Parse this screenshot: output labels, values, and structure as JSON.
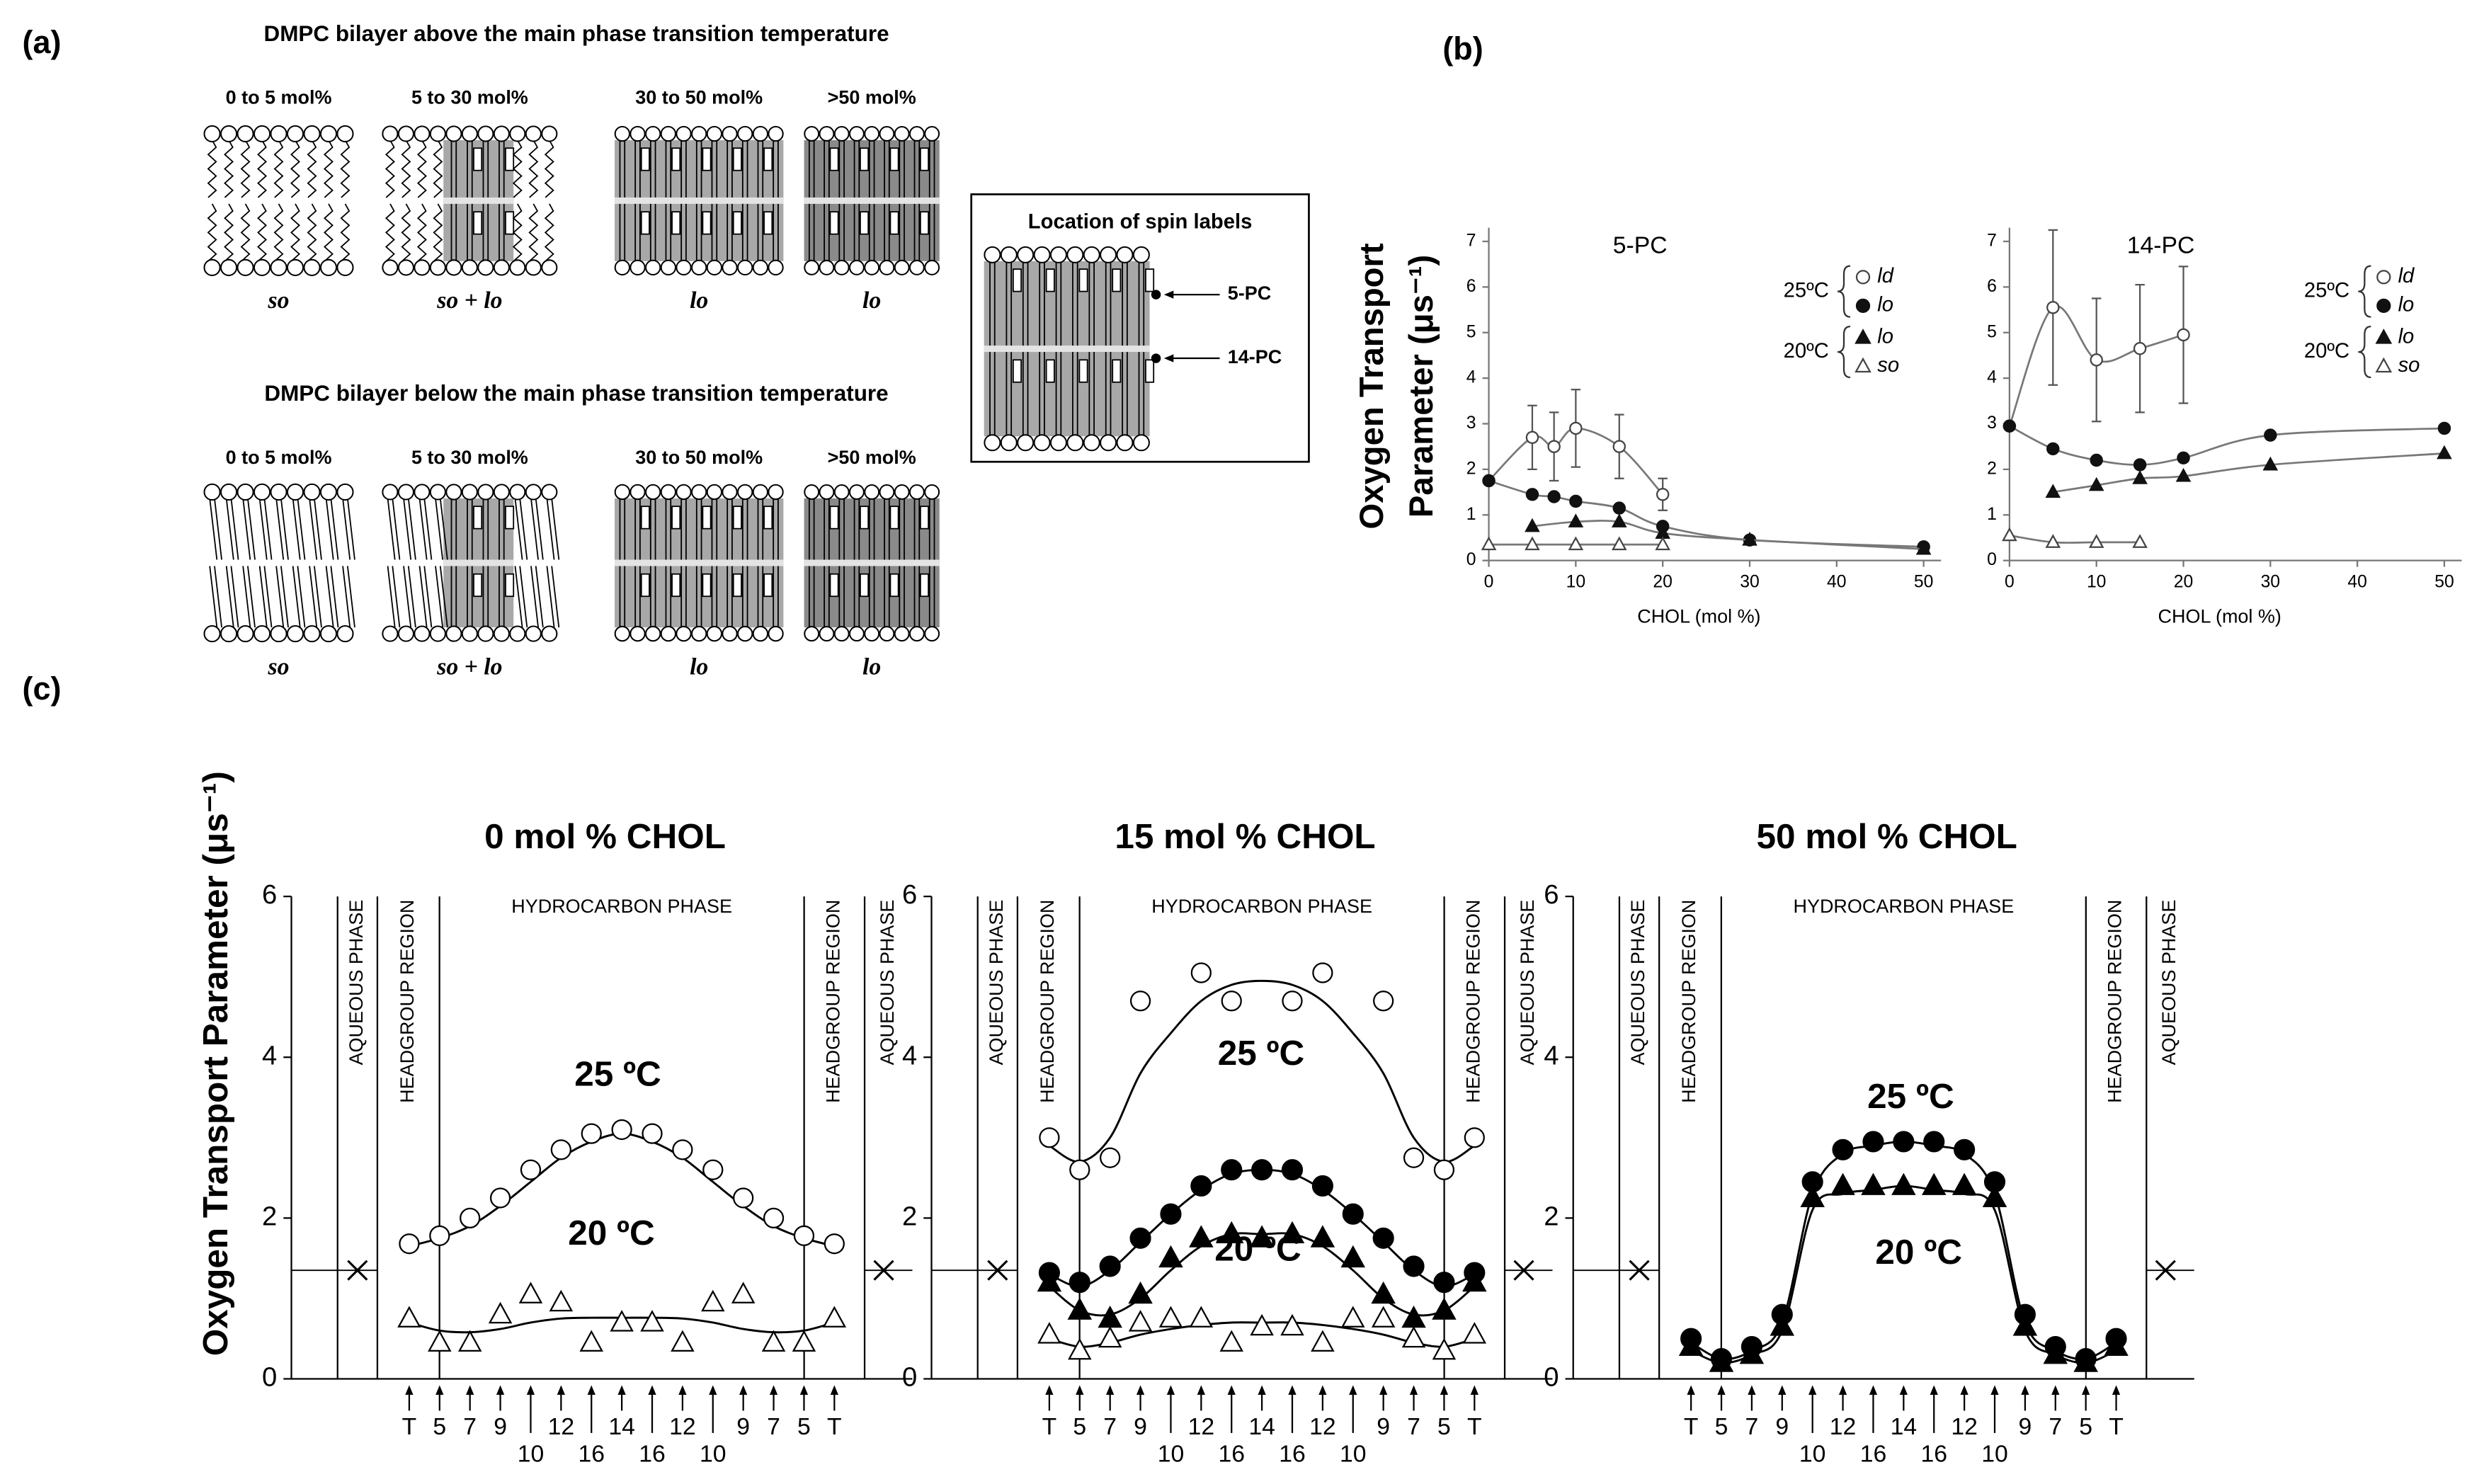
{
  "panel_labels": [
    "(a)",
    "(b)",
    "(c)"
  ],
  "diagram": {
    "above": {
      "title": "DMPC bilayer above the main phase transition temperature",
      "columns": [
        {
          "header": "0 to 5 mol%",
          "phase": "so"
        },
        {
          "header": "5 to 30 mol%",
          "phase": "so + lo"
        },
        {
          "header": "30 to 50 mol%",
          "phase": "lo"
        },
        {
          "header": ">50 mol%",
          "phase": "lo"
        }
      ]
    },
    "below": {
      "title": "DMPC bilayer below the main phase transition temperature",
      "columns": [
        {
          "header": "0 to 5 mol%",
          "phase": "so"
        },
        {
          "header": "5 to 30 mol%",
          "phase": "so + lo"
        },
        {
          "header": "30 to 50 mol%",
          "phase": "lo"
        },
        {
          "header": ">50 mol%",
          "phase": "lo"
        }
      ]
    },
    "spin_labels": {
      "title": "Location of spin labels",
      "labels": [
        "5-PC",
        "14-PC"
      ]
    }
  },
  "chart_data": [
    {
      "type": "scatter",
      "title": "5-PC",
      "xlabel": "CHOL (mol %)",
      "ylabel": [
        "Oxygen Transport",
        "Parameter (μs⁻¹)"
      ],
      "xlim": [
        0,
        52
      ],
      "xticks": [
        0,
        10,
        20,
        30,
        40,
        50
      ],
      "ylim": [
        0,
        7.3
      ],
      "yticks": [
        0,
        1,
        2,
        3,
        4,
        5,
        6,
        7
      ],
      "legend_groups": [
        "25ºC",
        "20ºC"
      ],
      "series": [
        {
          "name": "ld",
          "marker": "open-circle",
          "color": "#444444",
          "x": [
            0,
            5,
            7.5,
            10,
            15,
            20
          ],
          "values": [
            1.75,
            2.7,
            2.5,
            2.9,
            2.5,
            1.45
          ],
          "errors": [
            0,
            0.7,
            0.75,
            0.85,
            0.7,
            0.35
          ]
        },
        {
          "name": "lo",
          "marker": "filled-circle",
          "color": "#111111",
          "x": [
            0,
            5,
            7.5,
            10,
            15,
            20,
            30,
            50
          ],
          "values": [
            1.75,
            1.45,
            1.4,
            1.3,
            1.15,
            0.75,
            0.45,
            0.3
          ]
        },
        {
          "name": "lo",
          "marker": "filled-triangle",
          "color": "#111111",
          "x": [
            5,
            10,
            15,
            20,
            30,
            50
          ],
          "values": [
            0.75,
            0.85,
            0.85,
            0.6,
            0.45,
            0.25
          ]
        },
        {
          "name": "so",
          "marker": "open-triangle",
          "color": "#444444",
          "x": [
            0,
            5,
            10,
            15,
            20
          ],
          "values": [
            0.35,
            0.35,
            0.35,
            0.35,
            0.35
          ]
        }
      ]
    },
    {
      "type": "scatter",
      "title": "14-PC",
      "xlabel": "CHOL (mol %)",
      "xlim": [
        0,
        52
      ],
      "xticks": [
        0,
        10,
        20,
        30,
        40,
        50
      ],
      "ylim": [
        0,
        7.3
      ],
      "yticks": [
        0,
        1,
        2,
        3,
        4,
        5,
        6,
        7
      ],
      "legend_groups": [
        "25ºC",
        "20ºC"
      ],
      "series": [
        {
          "name": "ld",
          "marker": "open-circle",
          "color": "#444444",
          "x": [
            0,
            5,
            10,
            15,
            20
          ],
          "values": [
            2.95,
            5.55,
            4.4,
            4.65,
            4.95
          ],
          "errors": [
            0,
            1.7,
            1.35,
            1.4,
            1.5
          ]
        },
        {
          "name": "lo",
          "marker": "filled-circle",
          "color": "#111111",
          "x": [
            0,
            5,
            10,
            15,
            20,
            30,
            50
          ],
          "values": [
            2.95,
            2.45,
            2.2,
            2.1,
            2.25,
            2.75,
            2.9
          ]
        },
        {
          "name": "lo",
          "marker": "filled-triangle",
          "color": "#111111",
          "x": [
            5,
            10,
            15,
            20,
            30,
            50
          ],
          "values": [
            1.5,
            1.65,
            1.8,
            1.85,
            2.1,
            2.35
          ]
        },
        {
          "name": "so",
          "marker": "open-triangle",
          "color": "#444444",
          "x": [
            0,
            5,
            10,
            15
          ],
          "values": [
            0.55,
            0.4,
            0.4,
            0.4
          ]
        }
      ]
    },
    {
      "type": "profile",
      "title": "0 mol % CHOL",
      "ylabel": "Oxygen Transport Parameter (μs⁻¹)",
      "categories": [
        "T",
        "5",
        "7",
        "9",
        "10",
        "12",
        "16",
        "14",
        "16",
        "12",
        "10",
        "9",
        "7",
        "5",
        "T"
      ],
      "ylim": [
        0,
        6
      ],
      "yticks": [
        0,
        2,
        4,
        6
      ],
      "regions": [
        "AQUEOUS PHASE",
        "HEADGROUP REGION",
        "HYDROCARBON PHASE",
        "HEADGROUP REGION",
        "AQUEOUS PHASE"
      ],
      "aqueous": 1.35,
      "annotations": [
        "25 ºC",
        "20 ºC"
      ],
      "series": [
        {
          "marker": "open-circle",
          "color": "#000000",
          "values": [
            1.68,
            1.78,
            2.0,
            2.25,
            2.6,
            2.85,
            3.05,
            3.1,
            3.05,
            2.85,
            2.6,
            2.25,
            2.0,
            1.78,
            1.68
          ],
          "fit": [
            1.65,
            1.75,
            1.9,
            2.15,
            2.45,
            2.75,
            2.95,
            3.05,
            2.95,
            2.75,
            2.45,
            2.15,
            1.9,
            1.75,
            1.65
          ]
        },
        {
          "marker": "open-triangle",
          "color": "#000000",
          "values": [
            0.75,
            0.45,
            0.45,
            0.8,
            1.05,
            0.95,
            0.45,
            0.7,
            0.7,
            0.45,
            0.95,
            1.05,
            0.45,
            0.45,
            0.75
          ],
          "fit": [
            0.7,
            0.6,
            0.58,
            0.62,
            0.7,
            0.75,
            0.76,
            0.76,
            0.76,
            0.75,
            0.7,
            0.62,
            0.58,
            0.6,
            0.7
          ]
        }
      ]
    },
    {
      "type": "profile",
      "title": "15 mol % CHOL",
      "categories": [
        "T",
        "5",
        "7",
        "9",
        "10",
        "12",
        "16",
        "14",
        "16",
        "12",
        "10",
        "9",
        "7",
        "5",
        "T"
      ],
      "ylim": [
        0,
        6
      ],
      "yticks": [
        0,
        2,
        4,
        6
      ],
      "regions": [
        "AQUEOUS PHASE",
        "HEADGROUP REGION",
        "HYDROCARBON PHASE",
        "HEADGROUP REGION",
        "AQUEOUS PHASE"
      ],
      "aqueous": 1.35,
      "annotations": [
        "25 ºC",
        "20 ºC"
      ],
      "series": [
        {
          "marker": "open-circle",
          "color": "#000000",
          "values": [
            3.0,
            2.6,
            2.75,
            4.7,
            null,
            5.05,
            4.7,
            null,
            4.7,
            5.05,
            null,
            4.7,
            2.75,
            2.6,
            3.0
          ],
          "fit": [
            2.9,
            2.7,
            3.0,
            3.8,
            4.3,
            4.7,
            4.9,
            4.95,
            4.9,
            4.7,
            4.3,
            3.8,
            3.0,
            2.7,
            2.9
          ]
        },
        {
          "marker": "filled-circle",
          "color": "#000000",
          "values": [
            1.32,
            1.2,
            1.4,
            1.75,
            2.05,
            2.4,
            2.6,
            2.6,
            2.6,
            2.4,
            2.05,
            1.75,
            1.4,
            1.2,
            1.32
          ],
          "fit": [
            1.3,
            1.15,
            1.35,
            1.7,
            2.05,
            2.35,
            2.55,
            2.6,
            2.55,
            2.35,
            2.05,
            1.7,
            1.35,
            1.15,
            1.3
          ]
        },
        {
          "marker": "filled-triangle",
          "color": "#000000",
          "values": [
            1.2,
            0.85,
            0.75,
            1.05,
            1.5,
            1.75,
            1.8,
            1.75,
            1.8,
            1.75,
            1.5,
            1.05,
            0.75,
            0.85,
            1.2
          ],
          "fit": [
            1.15,
            0.85,
            0.8,
            1.0,
            1.35,
            1.65,
            1.8,
            1.8,
            1.8,
            1.65,
            1.35,
            1.0,
            0.8,
            0.85,
            1.15
          ]
        },
        {
          "marker": "open-triangle",
          "color": "#000000",
          "values": [
            0.55,
            0.35,
            0.5,
            0.7,
            0.75,
            0.75,
            0.45,
            0.65,
            0.65,
            0.45,
            0.75,
            0.75,
            0.5,
            0.35,
            0.55
          ],
          "fit": [
            0.5,
            0.4,
            0.45,
            0.55,
            0.62,
            0.67,
            0.7,
            0.7,
            0.7,
            0.67,
            0.62,
            0.55,
            0.45,
            0.4,
            0.5
          ]
        }
      ]
    },
    {
      "type": "profile",
      "title": "50 mol % CHOL",
      "categories": [
        "T",
        "5",
        "7",
        "9",
        "10",
        "12",
        "16",
        "14",
        "16",
        "12",
        "10",
        "9",
        "7",
        "5",
        "T"
      ],
      "ylim": [
        0,
        6
      ],
      "yticks": [
        0,
        2,
        4,
        6
      ],
      "regions": [
        "AQUEOUS PHASE",
        "HEADGROUP REGION",
        "HYDROCARBON PHASE",
        "HEADGROUP REGION",
        "AQUEOUS PHASE"
      ],
      "aqueous": 1.35,
      "annotations": [
        "25 ºC",
        "20 ºC"
      ],
      "series": [
        {
          "marker": "filled-circle",
          "color": "#000000",
          "values": [
            0.5,
            0.25,
            0.4,
            0.8,
            2.45,
            2.85,
            2.95,
            2.95,
            2.95,
            2.85,
            2.45,
            0.8,
            0.4,
            0.25,
            0.5
          ],
          "fit": [
            0.45,
            0.25,
            0.35,
            0.7,
            2.3,
            2.8,
            2.9,
            2.95,
            2.9,
            2.8,
            2.3,
            0.7,
            0.35,
            0.25,
            0.45
          ]
        },
        {
          "marker": "filled-triangle",
          "color": "#000000",
          "values": [
            0.4,
            0.2,
            0.3,
            0.65,
            2.25,
            2.4,
            2.4,
            2.4,
            2.4,
            2.4,
            2.25,
            0.65,
            0.3,
            0.2,
            0.4
          ],
          "fit": [
            0.35,
            0.2,
            0.3,
            0.6,
            2.1,
            2.3,
            2.35,
            2.4,
            2.35,
            2.3,
            2.1,
            0.6,
            0.3,
            0.2,
            0.35
          ]
        }
      ]
    }
  ]
}
